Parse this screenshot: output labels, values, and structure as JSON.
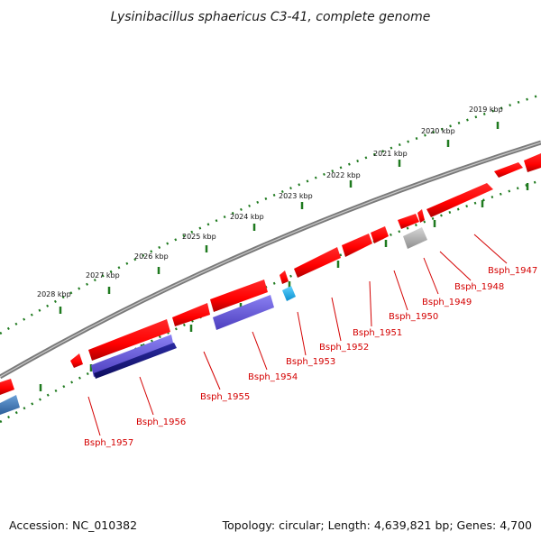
{
  "title": "Lysinibacillus sphaericus C3-41, complete genome",
  "footer": {
    "accession": "Accession: NC_010382",
    "summary": "Topology: circular; Length: 4,639,821 bp; Genes: 4,700"
  },
  "tick_labels": [
    "2019 kbp",
    "2020 kbp",
    "2021 kbp",
    "2022 kbp",
    "2023 kbp",
    "2024 kbp",
    "2025 kbp",
    "2026 kbp",
    "2027 kbp",
    "2028 kbp"
  ],
  "gene_labels": [
    "Bsph_1947",
    "Bsph_1948",
    "Bsph_1949",
    "Bsph_1950",
    "Bsph_1951",
    "Bsph_1952",
    "Bsph_1953",
    "Bsph_1954",
    "Bsph_1955",
    "Bsph_1956",
    "Bsph_1957"
  ],
  "colors": {
    "forward_gene": "#ff0000",
    "other_gene": "#6b5fe0",
    "dark_gene": "#1a1a8c",
    "cyan_gene": "#1ab8f0",
    "gray_gene": "#b0b0b0",
    "backbone": "#7a7a7a",
    "ticks": "#1f7a1f",
    "label": "#d40000"
  }
}
